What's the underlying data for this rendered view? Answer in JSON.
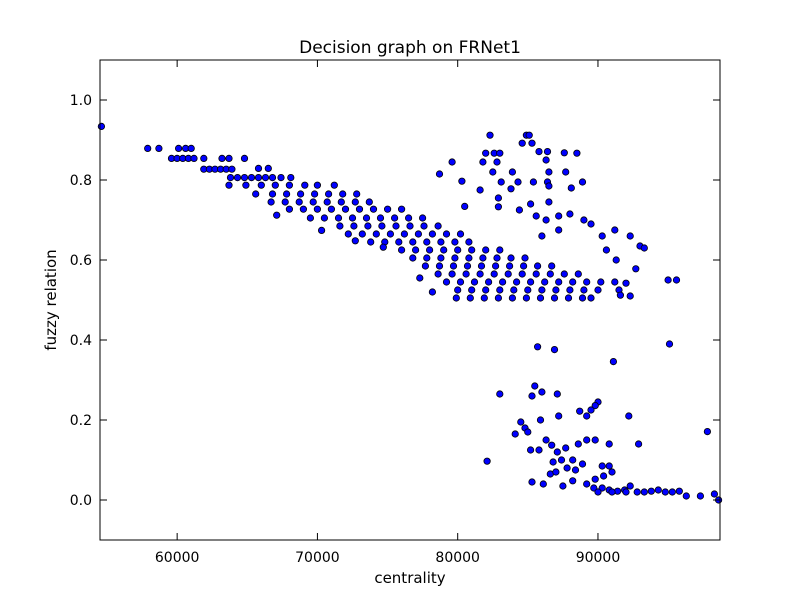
{
  "chart_data": {
    "type": "scatter",
    "title": "Decision graph on FRNet1",
    "xlabel": "centrality",
    "ylabel": "fuzzy relation",
    "xlim": [
      54500,
      98700
    ],
    "ylim": [
      -0.1,
      1.1
    ],
    "xticks": [
      60000,
      70000,
      80000,
      90000
    ],
    "xtick_labels": [
      "60000",
      "70000",
      "80000",
      "90000"
    ],
    "yticks": [
      0.0,
      0.2,
      0.4,
      0.6,
      0.8,
      1.0
    ],
    "ytick_labels": [
      "0.0",
      "0.2",
      "0.4",
      "0.6",
      "0.8",
      "1.0"
    ],
    "grid": false,
    "marker_color": "#0000ff",
    "marker_edge": "#000000",
    "series": [
      {
        "points": [
          [
            54600,
            0.934
          ],
          [
            57900,
            0.879
          ],
          [
            58700,
            0.879
          ],
          [
            59600,
            0.854
          ],
          [
            60000,
            0.854
          ],
          [
            60400,
            0.854
          ],
          [
            60100,
            0.879
          ],
          [
            60600,
            0.879
          ],
          [
            61000,
            0.879
          ],
          [
            60800,
            0.854
          ],
          [
            61200,
            0.854
          ],
          [
            61900,
            0.854
          ],
          [
            61900,
            0.827
          ],
          [
            62300,
            0.827
          ],
          [
            62700,
            0.827
          ],
          [
            63100,
            0.827
          ],
          [
            63500,
            0.827
          ],
          [
            63900,
            0.827
          ],
          [
            63200,
            0.854
          ],
          [
            63700,
            0.854
          ],
          [
            64800,
            0.854
          ],
          [
            63800,
            0.806
          ],
          [
            64300,
            0.806
          ],
          [
            64800,
            0.806
          ],
          [
            65300,
            0.806
          ],
          [
            65800,
            0.806
          ],
          [
            66300,
            0.806
          ],
          [
            66800,
            0.806
          ],
          [
            67400,
            0.806
          ],
          [
            68100,
            0.806
          ],
          [
            63700,
            0.787
          ],
          [
            64900,
            0.787
          ],
          [
            66000,
            0.787
          ],
          [
            67000,
            0.787
          ],
          [
            68000,
            0.787
          ],
          [
            69100,
            0.787
          ],
          [
            70000,
            0.787
          ],
          [
            71200,
            0.787
          ],
          [
            65800,
            0.829
          ],
          [
            66500,
            0.829
          ],
          [
            65600,
            0.765
          ],
          [
            66800,
            0.765
          ],
          [
            67800,
            0.765
          ],
          [
            68800,
            0.765
          ],
          [
            69800,
            0.765
          ],
          [
            70800,
            0.765
          ],
          [
            71800,
            0.765
          ],
          [
            72800,
            0.765
          ],
          [
            66700,
            0.745
          ],
          [
            67700,
            0.745
          ],
          [
            68700,
            0.745
          ],
          [
            69700,
            0.745
          ],
          [
            70700,
            0.745
          ],
          [
            71700,
            0.745
          ],
          [
            72700,
            0.745
          ],
          [
            73700,
            0.745
          ],
          [
            68000,
            0.727
          ],
          [
            69000,
            0.727
          ],
          [
            70000,
            0.727
          ],
          [
            71000,
            0.727
          ],
          [
            72000,
            0.727
          ],
          [
            73000,
            0.727
          ],
          [
            74000,
            0.727
          ],
          [
            75000,
            0.727
          ],
          [
            76000,
            0.727
          ],
          [
            67100,
            0.712
          ],
          [
            69500,
            0.705
          ],
          [
            70500,
            0.705
          ],
          [
            71500,
            0.705
          ],
          [
            72500,
            0.705
          ],
          [
            73500,
            0.705
          ],
          [
            74500,
            0.705
          ],
          [
            75500,
            0.705
          ],
          [
            76500,
            0.705
          ],
          [
            77500,
            0.705
          ],
          [
            70300,
            0.674
          ],
          [
            71600,
            0.685
          ],
          [
            72600,
            0.685
          ],
          [
            73600,
            0.685
          ],
          [
            74600,
            0.685
          ],
          [
            75600,
            0.685
          ],
          [
            76600,
            0.685
          ],
          [
            77600,
            0.685
          ],
          [
            78600,
            0.685
          ],
          [
            72200,
            0.665
          ],
          [
            73200,
            0.665
          ],
          [
            74200,
            0.665
          ],
          [
            75200,
            0.665
          ],
          [
            76200,
            0.665
          ],
          [
            77200,
            0.665
          ],
          [
            78200,
            0.665
          ],
          [
            79200,
            0.665
          ],
          [
            80200,
            0.665
          ],
          [
            72700,
            0.648
          ],
          [
            73800,
            0.645
          ],
          [
            74800,
            0.645
          ],
          [
            75800,
            0.645
          ],
          [
            76800,
            0.645
          ],
          [
            77800,
            0.645
          ],
          [
            78800,
            0.645
          ],
          [
            79800,
            0.645
          ],
          [
            80800,
            0.645
          ],
          [
            74700,
            0.632
          ],
          [
            76000,
            0.625
          ],
          [
            77000,
            0.625
          ],
          [
            78000,
            0.625
          ],
          [
            79000,
            0.625
          ],
          [
            80000,
            0.625
          ],
          [
            81000,
            0.625
          ],
          [
            82000,
            0.625
          ],
          [
            83000,
            0.625
          ],
          [
            76800,
            0.605
          ],
          [
            77800,
            0.605
          ],
          [
            78800,
            0.605
          ],
          [
            79800,
            0.605
          ],
          [
            80800,
            0.605
          ],
          [
            81800,
            0.605
          ],
          [
            82800,
            0.605
          ],
          [
            83800,
            0.605
          ],
          [
            84800,
            0.605
          ],
          [
            77700,
            0.585
          ],
          [
            78700,
            0.585
          ],
          [
            79700,
            0.585
          ],
          [
            80700,
            0.585
          ],
          [
            81700,
            0.585
          ],
          [
            82700,
            0.585
          ],
          [
            83700,
            0.585
          ],
          [
            84700,
            0.585
          ],
          [
            85700,
            0.585
          ],
          [
            86700,
            0.585
          ],
          [
            78600,
            0.565
          ],
          [
            79600,
            0.565
          ],
          [
            80600,
            0.565
          ],
          [
            81600,
            0.565
          ],
          [
            82600,
            0.565
          ],
          [
            83600,
            0.565
          ],
          [
            84600,
            0.565
          ],
          [
            85600,
            0.565
          ],
          [
            86600,
            0.565
          ],
          [
            87600,
            0.565
          ],
          [
            88600,
            0.565
          ],
          [
            79200,
            0.545
          ],
          [
            80200,
            0.545
          ],
          [
            81200,
            0.545
          ],
          [
            82200,
            0.545
          ],
          [
            83200,
            0.545
          ],
          [
            84200,
            0.545
          ],
          [
            85200,
            0.545
          ],
          [
            86200,
            0.545
          ],
          [
            87200,
            0.545
          ],
          [
            88200,
            0.545
          ],
          [
            89200,
            0.545
          ],
          [
            90200,
            0.545
          ],
          [
            91200,
            0.545
          ],
          [
            80000,
            0.525
          ],
          [
            81000,
            0.525
          ],
          [
            82000,
            0.525
          ],
          [
            83000,
            0.525
          ],
          [
            84000,
            0.525
          ],
          [
            85000,
            0.525
          ],
          [
            86000,
            0.525
          ],
          [
            87000,
            0.525
          ],
          [
            88000,
            0.525
          ],
          [
            89000,
            0.525
          ],
          [
            90000,
            0.525
          ],
          [
            91500,
            0.525
          ],
          [
            92300,
            0.51
          ],
          [
            79900,
            0.505
          ],
          [
            80900,
            0.505
          ],
          [
            81900,
            0.505
          ],
          [
            82900,
            0.505
          ],
          [
            83900,
            0.505
          ],
          [
            84900,
            0.505
          ],
          [
            85900,
            0.505
          ],
          [
            86900,
            0.505
          ],
          [
            87900,
            0.505
          ],
          [
            88900,
            0.505
          ],
          [
            89500,
            0.505
          ],
          [
            77300,
            0.555
          ],
          [
            78200,
            0.52
          ],
          [
            82300,
            0.912
          ],
          [
            84900,
            0.912
          ],
          [
            85100,
            0.912
          ],
          [
            84600,
            0.892
          ],
          [
            85300,
            0.892
          ],
          [
            85800,
            0.871
          ],
          [
            86400,
            0.871
          ],
          [
            82000,
            0.867
          ],
          [
            82600,
            0.867
          ],
          [
            83000,
            0.867
          ],
          [
            87600,
            0.868
          ],
          [
            88500,
            0.867
          ],
          [
            79600,
            0.845
          ],
          [
            81800,
            0.845
          ],
          [
            82800,
            0.845
          ],
          [
            86300,
            0.85
          ],
          [
            78700,
            0.815
          ],
          [
            82500,
            0.82
          ],
          [
            83900,
            0.82
          ],
          [
            86500,
            0.82
          ],
          [
            87700,
            0.82
          ],
          [
            80300,
            0.797
          ],
          [
            83100,
            0.795
          ],
          [
            84300,
            0.795
          ],
          [
            85400,
            0.795
          ],
          [
            86400,
            0.795
          ],
          [
            88900,
            0.795
          ],
          [
            81600,
            0.775
          ],
          [
            83800,
            0.778
          ],
          [
            86500,
            0.785
          ],
          [
            88100,
            0.78
          ],
          [
            82900,
            0.755
          ],
          [
            85200,
            0.74
          ],
          [
            86500,
            0.745
          ],
          [
            80500,
            0.734
          ],
          [
            82900,
            0.733
          ],
          [
            84400,
            0.725
          ],
          [
            86300,
            0.7
          ],
          [
            88000,
            0.715
          ],
          [
            85600,
            0.71
          ],
          [
            87200,
            0.71
          ],
          [
            89000,
            0.7
          ],
          [
            86000,
            0.66
          ],
          [
            87200,
            0.675
          ],
          [
            89500,
            0.69
          ],
          [
            90300,
            0.66
          ],
          [
            91200,
            0.675
          ],
          [
            92300,
            0.66
          ],
          [
            93000,
            0.635
          ],
          [
            90600,
            0.625
          ],
          [
            91300,
            0.6
          ],
          [
            92700,
            0.578
          ],
          [
            95000,
            0.55
          ],
          [
            95600,
            0.55
          ],
          [
            92000,
            0.542
          ],
          [
            91600,
            0.512
          ],
          [
            93300,
            0.63
          ],
          [
            85700,
            0.383
          ],
          [
            86900,
            0.376
          ],
          [
            91100,
            0.346
          ],
          [
            95100,
            0.39
          ],
          [
            85500,
            0.285
          ],
          [
            86000,
            0.27
          ],
          [
            85300,
            0.26
          ],
          [
            87100,
            0.265
          ],
          [
            83000,
            0.265
          ],
          [
            90000,
            0.245
          ],
          [
            89800,
            0.236
          ],
          [
            88700,
            0.222
          ],
          [
            89500,
            0.225
          ],
          [
            89200,
            0.21
          ],
          [
            87200,
            0.21
          ],
          [
            92200,
            0.21
          ],
          [
            84500,
            0.195
          ],
          [
            85900,
            0.2
          ],
          [
            84800,
            0.18
          ],
          [
            85000,
            0.17
          ],
          [
            84100,
            0.165
          ],
          [
            97800,
            0.171
          ],
          [
            86300,
            0.15
          ],
          [
            86700,
            0.137
          ],
          [
            87700,
            0.13
          ],
          [
            88600,
            0.14
          ],
          [
            89200,
            0.15
          ],
          [
            89800,
            0.15
          ],
          [
            90800,
            0.14
          ],
          [
            92900,
            0.14
          ],
          [
            85200,
            0.125
          ],
          [
            85800,
            0.125
          ],
          [
            87100,
            0.12
          ],
          [
            82100,
            0.097
          ],
          [
            86800,
            0.095
          ],
          [
            87400,
            0.1
          ],
          [
            88200,
            0.1
          ],
          [
            88900,
            0.09
          ],
          [
            87800,
            0.08
          ],
          [
            88400,
            0.075
          ],
          [
            86600,
            0.065
          ],
          [
            87000,
            0.07
          ],
          [
            90300,
            0.085
          ],
          [
            90800,
            0.085
          ],
          [
            91000,
            0.07
          ],
          [
            90400,
            0.06
          ],
          [
            89800,
            0.052
          ],
          [
            88200,
            0.048
          ],
          [
            85300,
            0.045
          ],
          [
            86100,
            0.04
          ],
          [
            87500,
            0.035
          ],
          [
            89200,
            0.04
          ],
          [
            89700,
            0.03
          ],
          [
            90300,
            0.03
          ],
          [
            90800,
            0.025
          ],
          [
            91400,
            0.022
          ],
          [
            91900,
            0.025
          ],
          [
            92300,
            0.035
          ],
          [
            92800,
            0.02
          ],
          [
            93300,
            0.02
          ],
          [
            93800,
            0.022
          ],
          [
            94300,
            0.025
          ],
          [
            94800,
            0.02
          ],
          [
            95300,
            0.02
          ],
          [
            95800,
            0.022
          ],
          [
            96300,
            0.01
          ],
          [
            97300,
            0.01
          ],
          [
            98300,
            0.015
          ],
          [
            98600,
            0.0
          ],
          [
            90000,
            0.02
          ],
          [
            91000,
            0.02
          ],
          [
            92000,
            0.02
          ]
        ]
      }
    ]
  }
}
